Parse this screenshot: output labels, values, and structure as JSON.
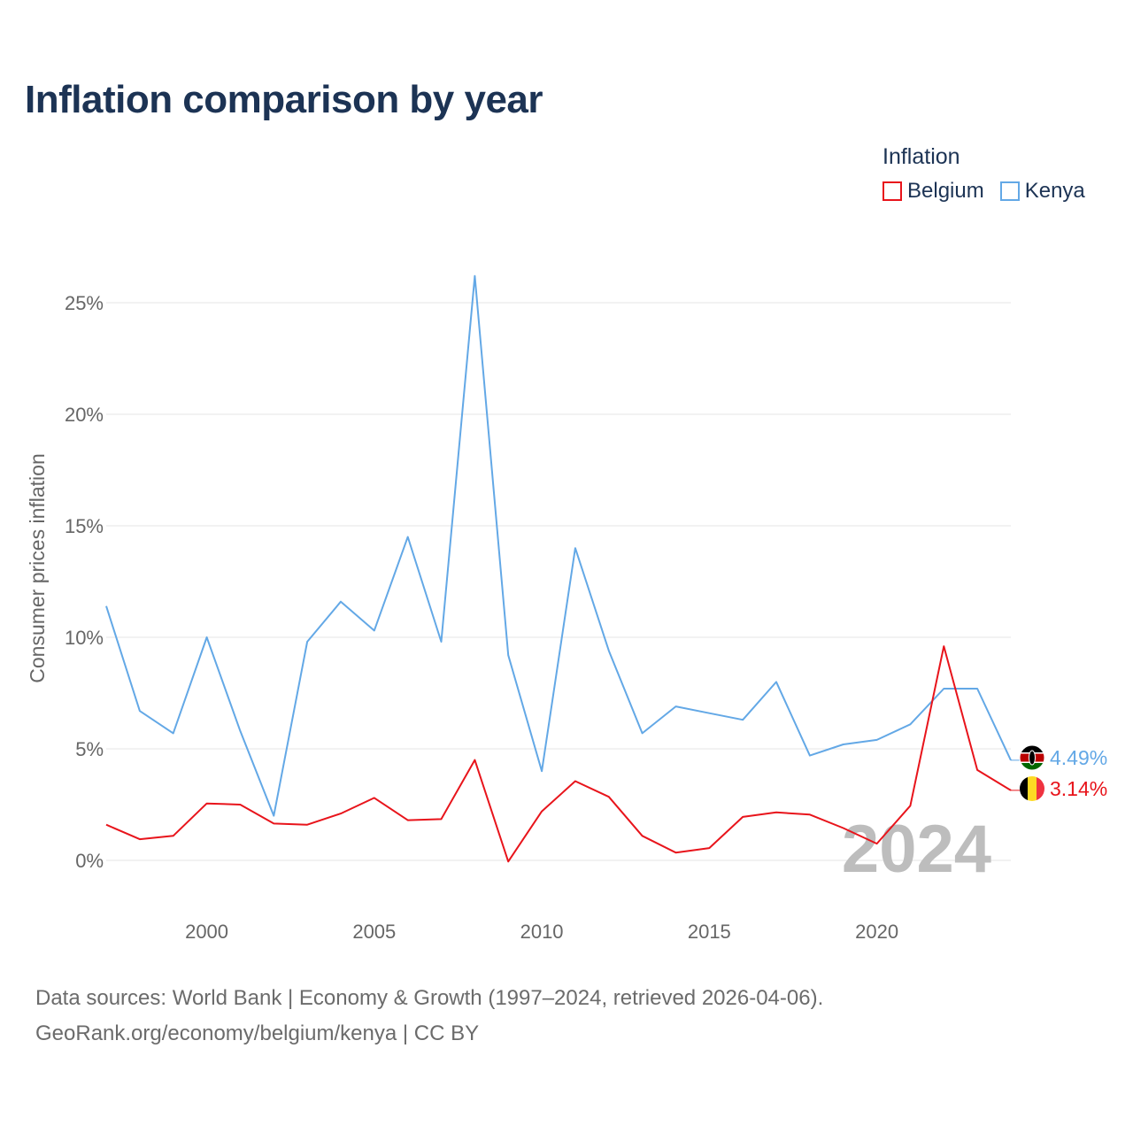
{
  "title": "Inflation comparison by year",
  "legend": {
    "title": "Inflation",
    "items": [
      {
        "label": "Belgium",
        "color": "#e8141b"
      },
      {
        "label": "Kenya",
        "color": "#63a8e6"
      }
    ]
  },
  "footer": {
    "line1": "Data sources: World Bank | Economy & Growth (1997–2024, retrieved 2026-04-06).",
    "line2": "GeoRank.org/economy/belgium/kenya | CC BY"
  },
  "chart_data": {
    "type": "line",
    "title": "Inflation comparison by year",
    "xlabel": "",
    "ylabel": "Consumer prices inflation",
    "xlim": [
      1997,
      2024
    ],
    "ylim": [
      -1.5,
      27
    ],
    "x_ticks": [
      2000,
      2005,
      2010,
      2015,
      2020
    ],
    "y_ticks": [
      0,
      5,
      10,
      15,
      20,
      25
    ],
    "y_tick_labels": [
      "0%",
      "5%",
      "10%",
      "15%",
      "20%",
      "25%"
    ],
    "grid": true,
    "watermark": "2024",
    "x": [
      1997,
      1998,
      1999,
      2000,
      2001,
      2002,
      2003,
      2004,
      2005,
      2006,
      2007,
      2008,
      2009,
      2010,
      2011,
      2012,
      2013,
      2014,
      2015,
      2016,
      2017,
      2018,
      2019,
      2020,
      2021,
      2022,
      2023,
      2024
    ],
    "series": [
      {
        "name": "Kenya",
        "color": "#63a8e6",
        "end_label": "4.49%",
        "values": [
          11.4,
          6.7,
          5.7,
          10.0,
          5.8,
          2.0,
          9.8,
          11.6,
          10.3,
          14.5,
          9.8,
          26.2,
          9.2,
          4.0,
          14.0,
          9.4,
          5.7,
          6.9,
          6.6,
          6.3,
          8.0,
          4.7,
          5.2,
          5.4,
          6.1,
          7.7,
          7.7,
          4.49
        ]
      },
      {
        "name": "Belgium",
        "color": "#e8141b",
        "end_label": "3.14%",
        "values": [
          1.6,
          0.95,
          1.1,
          2.55,
          2.5,
          1.65,
          1.6,
          2.1,
          2.8,
          1.8,
          1.85,
          4.5,
          -0.05,
          2.2,
          3.55,
          2.85,
          1.1,
          0.35,
          0.55,
          1.95,
          2.15,
          2.05,
          1.45,
          0.75,
          2.45,
          9.6,
          4.05,
          3.14
        ]
      }
    ]
  }
}
